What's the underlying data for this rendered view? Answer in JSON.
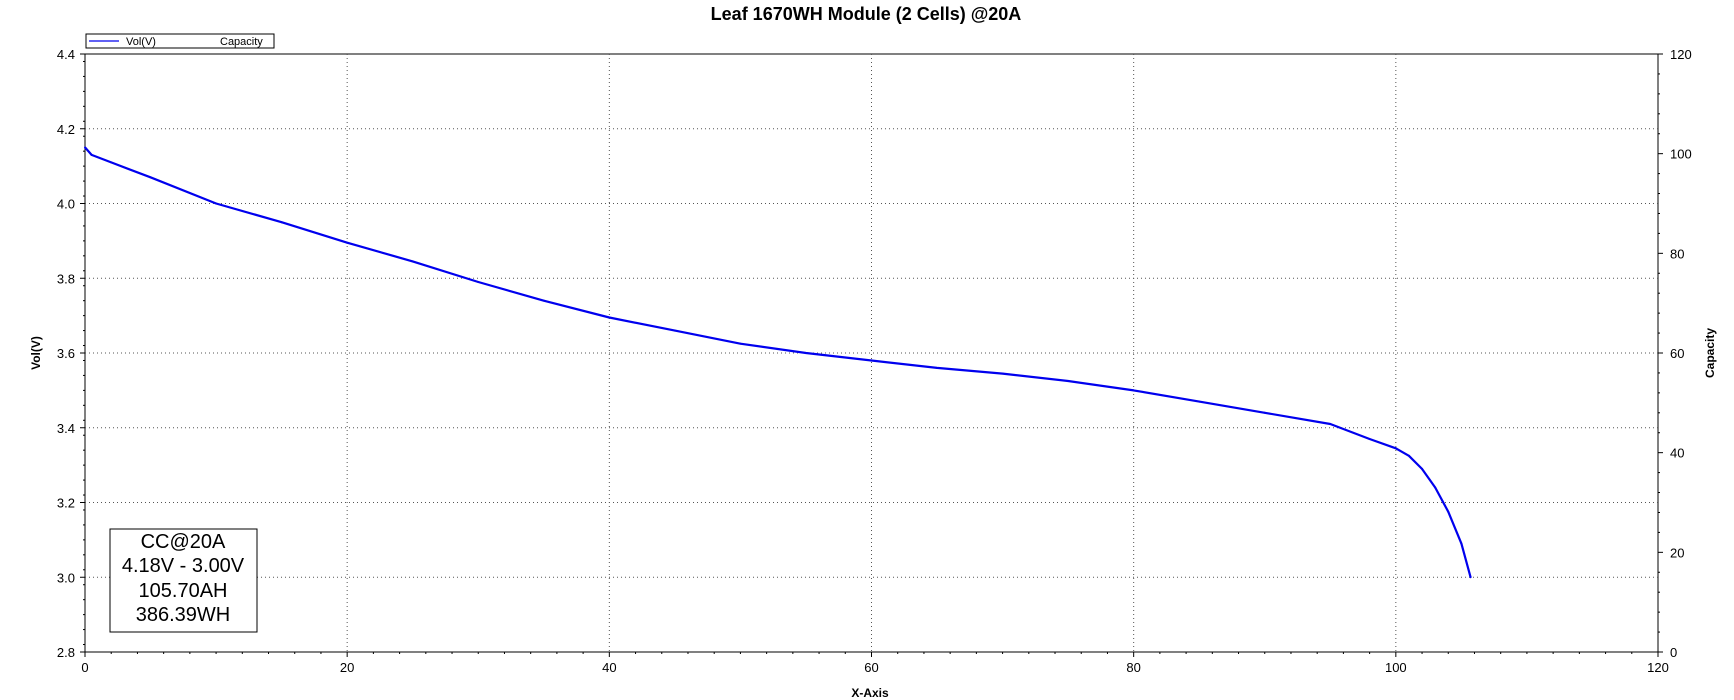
{
  "chart_data": {
    "type": "line",
    "title": "Leaf 1670WH Module (2 Cells) @20A",
    "xlabel": "X-Axis",
    "ylabel": "Vol(V)",
    "y2label": "Capacity",
    "xlim": [
      0,
      120
    ],
    "ylim": [
      2.8,
      4.4
    ],
    "y2lim": [
      0,
      120
    ],
    "x_ticks": [
      "0",
      "20",
      "40",
      "60",
      "80",
      "100",
      "120"
    ],
    "y_ticks": [
      "2.8",
      "3.0",
      "3.2",
      "3.4",
      "3.6",
      "3.8",
      "4.0",
      "4.2",
      "4.4"
    ],
    "y2_ticks": [
      "0",
      "20",
      "40",
      "60",
      "80",
      "100",
      "120"
    ],
    "grid": true,
    "legend_position": "top-left",
    "legend": [
      "Vol(V)",
      "Capacity"
    ],
    "annotation": [
      "CC@20A",
      "4.18V - 3.00V",
      "105.70AH",
      "386.39WH"
    ],
    "series": [
      {
        "name": "Vol(V)",
        "color": "#0000ee",
        "axis": "left",
        "x": [
          0,
          0.5,
          2,
          5,
          10,
          15,
          20,
          25,
          30,
          35,
          40,
          45,
          50,
          55,
          60,
          65,
          70,
          75,
          80,
          85,
          90,
          95,
          98,
          100,
          101,
          102,
          103,
          104,
          105,
          105.7
        ],
        "y": [
          4.15,
          4.13,
          4.11,
          4.07,
          4.0,
          3.95,
          3.895,
          3.845,
          3.79,
          3.74,
          3.695,
          3.66,
          3.625,
          3.6,
          3.58,
          3.56,
          3.545,
          3.525,
          3.5,
          3.47,
          3.44,
          3.41,
          3.37,
          3.345,
          3.325,
          3.29,
          3.24,
          3.175,
          3.09,
          3.0
        ]
      },
      {
        "name": "Capacity",
        "color": "#000000",
        "axis": "right",
        "x": [],
        "y": []
      }
    ]
  }
}
